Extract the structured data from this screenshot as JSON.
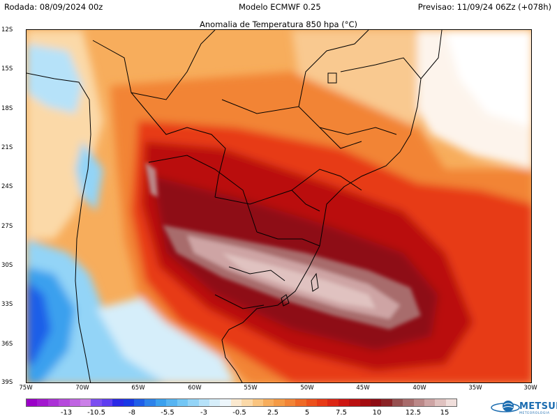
{
  "header": {
    "run": "Rodada: 08/09/2024 00z",
    "model": "Modelo ECMWF 0.25",
    "valid": "Previsao: 11/09/24 06Zz (+078h)",
    "title": "Anomalia de Temperatura 850 hpa (°C)"
  },
  "lat_labels": [
    "12S",
    "15S",
    "18S",
    "21S",
    "24S",
    "27S",
    "30S",
    "33S",
    "36S",
    "39S"
  ],
  "lon_labels": [
    "75W",
    "70W",
    "65W",
    "60W",
    "55W",
    "50W",
    "45W",
    "40W",
    "35W",
    "30W"
  ],
  "colorbar": {
    "labels": [
      "-13",
      "-10.5",
      "-8",
      "-5.5",
      "-3",
      "-0.5",
      "2.5",
      "5",
      "7.5",
      "10",
      "12.5",
      "15"
    ],
    "colors": [
      "#9b00c8",
      "#a318cf",
      "#ab31d6",
      "#b64adc",
      "#c064e2",
      "#cb7fe8",
      "#7b4ef0",
      "#5e3df0",
      "#2a28e6",
      "#1838e6",
      "#1f5ee8",
      "#2c82ea",
      "#3aa0ee",
      "#56b4f2",
      "#72c6f5",
      "#93d4f7",
      "#b6e2f9",
      "#d6eefa",
      "#edf6fb",
      "#fbe9cf",
      "#fbd9a8",
      "#fac47f",
      "#f7ad5c",
      "#f49a45",
      "#f28436",
      "#ef6a26",
      "#ec511c",
      "#e73a16",
      "#dc2614",
      "#cd1612",
      "#ba1010",
      "#a40c10",
      "#8e0c14",
      "#8a2226",
      "#965050",
      "#a86c6c",
      "#bb8888",
      "#cea4a4",
      "#e0c2c0",
      "#f0dedb"
    ]
  },
  "logo": {
    "name": "METSUL",
    "sub": "METEOROLOGIA",
    "icon": "globe-icon"
  }
}
